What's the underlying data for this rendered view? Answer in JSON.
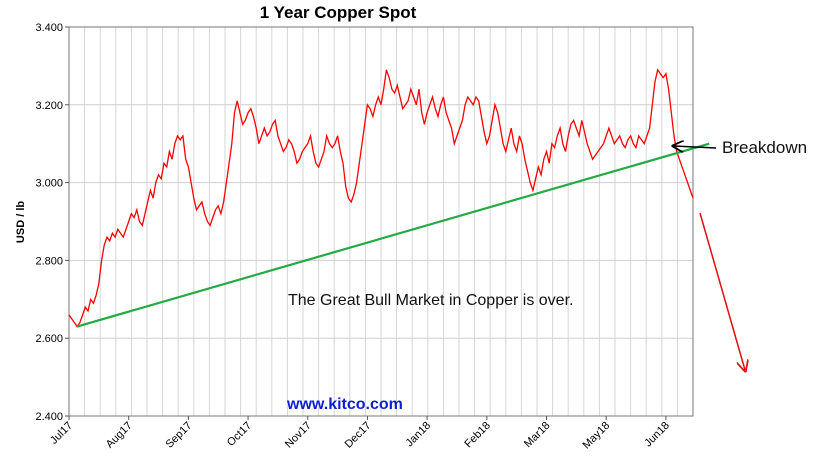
{
  "chart_data": {
    "type": "line",
    "title": "1 Year Copper Spot",
    "ylabel": "USD / lb",
    "xlabel": "",
    "ylim": [
      2.4,
      3.4
    ],
    "yticks": [
      "3.400",
      "3.200",
      "3.000",
      "2.800",
      "2.600",
      "2.400"
    ],
    "ytick_values": [
      3.4,
      3.2,
      3.0,
      2.8,
      2.6,
      2.4
    ],
    "xticks": [
      "Jul17",
      "Aug17",
      "Sep17",
      "Oct17",
      "Nov17",
      "Dec17",
      "Jan18",
      "Feb18",
      "Mar18",
      "May18",
      "Jun18"
    ],
    "xtick_index": [
      0,
      22,
      44,
      66,
      88,
      110,
      132,
      154,
      176,
      198,
      220
    ],
    "grid": true,
    "series": [
      {
        "color": "#ff0000",
        "values": [
          2.66,
          2.65,
          2.64,
          2.63,
          2.64,
          2.66,
          2.68,
          2.67,
          2.7,
          2.69,
          2.71,
          2.74,
          2.8,
          2.84,
          2.86,
          2.85,
          2.87,
          2.86,
          2.88,
          2.87,
          2.86,
          2.88,
          2.9,
          2.92,
          2.91,
          2.93,
          2.9,
          2.89,
          2.92,
          2.95,
          2.98,
          2.96,
          3.0,
          3.02,
          3.01,
          3.05,
          3.04,
          3.08,
          3.06,
          3.1,
          3.12,
          3.11,
          3.12,
          3.06,
          3.04,
          3.0,
          2.96,
          2.93,
          2.94,
          2.95,
          2.92,
          2.9,
          2.89,
          2.91,
          2.93,
          2.94,
          2.92,
          2.95,
          3.0,
          3.05,
          3.1,
          3.18,
          3.21,
          3.18,
          3.15,
          3.16,
          3.18,
          3.19,
          3.17,
          3.14,
          3.1,
          3.12,
          3.14,
          3.12,
          3.13,
          3.15,
          3.16,
          3.12,
          3.1,
          3.08,
          3.09,
          3.11,
          3.1,
          3.08,
          3.05,
          3.06,
          3.08,
          3.09,
          3.1,
          3.12,
          3.08,
          3.05,
          3.04,
          3.06,
          3.08,
          3.12,
          3.1,
          3.09,
          3.1,
          3.12,
          3.08,
          3.05,
          2.99,
          2.96,
          2.95,
          2.97,
          3.0,
          3.05,
          3.1,
          3.15,
          3.2,
          3.19,
          3.17,
          3.2,
          3.22,
          3.2,
          3.24,
          3.29,
          3.27,
          3.24,
          3.23,
          3.25,
          3.22,
          3.19,
          3.2,
          3.21,
          3.24,
          3.22,
          3.2,
          3.24,
          3.18,
          3.15,
          3.18,
          3.2,
          3.22,
          3.19,
          3.17,
          3.2,
          3.22,
          3.18,
          3.16,
          3.14,
          3.1,
          3.12,
          3.14,
          3.16,
          3.2,
          3.22,
          3.21,
          3.2,
          3.22,
          3.21,
          3.17,
          3.13,
          3.1,
          3.12,
          3.16,
          3.2,
          3.18,
          3.14,
          3.1,
          3.08,
          3.11,
          3.14,
          3.1,
          3.08,
          3.12,
          3.1,
          3.06,
          3.03,
          3.0,
          2.98,
          3.01,
          3.04,
          3.02,
          3.06,
          3.08,
          3.05,
          3.1,
          3.09,
          3.12,
          3.14,
          3.1,
          3.08,
          3.12,
          3.15,
          3.16,
          3.14,
          3.12,
          3.16,
          3.13,
          3.1,
          3.08,
          3.06,
          3.07,
          3.08,
          3.09,
          3.1,
          3.12,
          3.14,
          3.12,
          3.1,
          3.11,
          3.12,
          3.1,
          3.09,
          3.11,
          3.12,
          3.1,
          3.09,
          3.12,
          3.11,
          3.1,
          3.12,
          3.14,
          3.2,
          3.26,
          3.29,
          3.28,
          3.27,
          3.28,
          3.24,
          3.18,
          3.12,
          3.08,
          3.06,
          3.04,
          3.02,
          3.0,
          2.98,
          2.96
        ]
      },
      {
        "color": "#22aa44",
        "type": "trendline",
        "x_index": [
          3,
          236
        ],
        "values": [
          2.63,
          3.1
        ]
      }
    ]
  },
  "annotations": {
    "main_note": "The Great Bull Market in Copper is over.",
    "source": "www.kitco.com",
    "breakdown": "Breakdown"
  }
}
